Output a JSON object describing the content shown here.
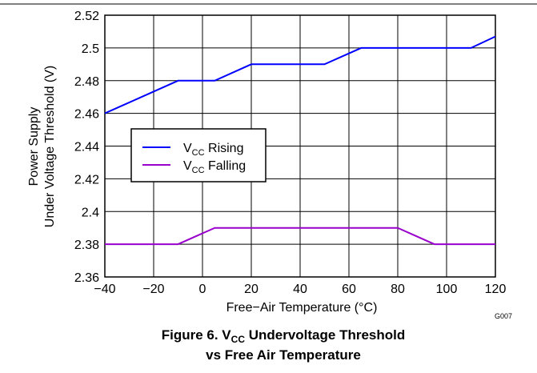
{
  "chart_data": {
    "type": "line",
    "xlabel": "Free−Air Temperature (°C)",
    "ylabel_line1": "Power Supply",
    "ylabel_line2": "Under Voltage Threshold (V)",
    "xlim": [
      -40,
      120
    ],
    "ylim": [
      2.36,
      2.52
    ],
    "x_ticks": [
      "−40",
      "−20",
      "0",
      "20",
      "40",
      "60",
      "80",
      "100",
      "120"
    ],
    "y_ticks": [
      "2.36",
      "2.38",
      "2.4",
      "2.42",
      "2.44",
      "2.46",
      "2.48",
      "2.5",
      "2.52"
    ],
    "grid": true,
    "legend_placement": "center-left",
    "series": [
      {
        "name_main": "V",
        "name_sub": "CC",
        "name_rest": " Rising",
        "color": "#0000ff",
        "x": [
          -40,
          -10,
          5,
          20,
          50,
          65,
          110,
          120
        ],
        "y": [
          2.46,
          2.48,
          2.48,
          2.49,
          2.49,
          2.5,
          2.5,
          2.507
        ]
      },
      {
        "name_main": "V",
        "name_sub": "CC",
        "name_rest": " Falling",
        "color": "#9900cc",
        "x": [
          -40,
          -10,
          5,
          80,
          95,
          120
        ],
        "y": [
          2.38,
          2.38,
          2.39,
          2.39,
          2.38,
          2.38
        ]
      }
    ],
    "figure_id": "G007",
    "caption_line1_prefix": "Figure 6. V",
    "caption_line1_sub": "CC",
    "caption_line1_suffix": " Undervoltage Threshold",
    "caption_line2": "vs Free Air Temperature"
  }
}
